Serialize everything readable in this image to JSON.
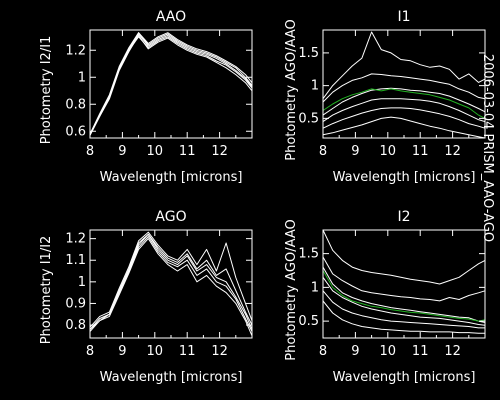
{
  "side_label": "2006-03-04 PRISM_AAO-AGO",
  "colors": {
    "background": "#000000",
    "foreground": "#ffffff",
    "highlight": "#22b022"
  },
  "chart_data": [
    {
      "type": "line",
      "title": "AAO",
      "xlabel": "Wavelength [microns]",
      "ylabel": "Photometry I2/I1",
      "xlim": [
        8,
        13
      ],
      "ylim": [
        0.55,
        1.35
      ],
      "xticks": [
        8,
        9,
        10,
        11,
        12
      ],
      "yticks": [
        0.6,
        0.8,
        1.0,
        1.2
      ],
      "x": [
        8.0,
        8.3,
        8.6,
        8.9,
        9.2,
        9.5,
        9.8,
        10.1,
        10.4,
        10.7,
        11.0,
        11.3,
        11.6,
        11.9,
        12.2,
        12.5,
        12.8,
        13.0
      ],
      "series": [
        {
          "values": [
            0.57,
            0.72,
            0.85,
            1.06,
            1.2,
            1.32,
            1.23,
            1.28,
            1.31,
            1.26,
            1.22,
            1.19,
            1.17,
            1.14,
            1.1,
            1.05,
            0.99,
            0.93
          ]
        },
        {
          "values": [
            0.58,
            0.73,
            0.87,
            1.08,
            1.22,
            1.33,
            1.25,
            1.3,
            1.33,
            1.28,
            1.24,
            1.21,
            1.19,
            1.16,
            1.12,
            1.08,
            1.02,
            0.96
          ]
        },
        {
          "values": [
            0.57,
            0.71,
            0.84,
            1.05,
            1.19,
            1.31,
            1.21,
            1.26,
            1.29,
            1.24,
            1.2,
            1.17,
            1.15,
            1.11,
            1.07,
            1.02,
            0.96,
            0.9
          ]
        },
        {
          "values": [
            0.58,
            0.72,
            0.86,
            1.07,
            1.21,
            1.33,
            1.24,
            1.29,
            1.32,
            1.27,
            1.23,
            1.2,
            1.18,
            1.15,
            1.11,
            1.07,
            1.0,
            0.94
          ]
        },
        {
          "values": [
            0.57,
            0.71,
            0.85,
            1.06,
            1.2,
            1.3,
            1.22,
            1.27,
            1.3,
            1.25,
            1.21,
            1.18,
            1.16,
            1.12,
            1.09,
            1.04,
            0.98,
            0.92
          ]
        }
      ]
    },
    {
      "type": "line",
      "title": "I1",
      "xlabel": "Wavelength [microns]",
      "ylabel": "Photometry AGO/AAO",
      "xlim": [
        8,
        13
      ],
      "ylim": [
        0.2,
        1.85
      ],
      "xticks": [
        8,
        9,
        10,
        11,
        12
      ],
      "yticks": [
        0.5,
        1.0,
        1.5
      ],
      "x": [
        8.0,
        8.3,
        8.6,
        8.9,
        9.2,
        9.5,
        9.8,
        10.1,
        10.4,
        10.7,
        11.0,
        11.3,
        11.6,
        11.9,
        12.2,
        12.5,
        12.8,
        13.0
      ],
      "series": [
        {
          "values": [
            0.8,
            1.0,
            1.15,
            1.3,
            1.42,
            1.82,
            1.55,
            1.5,
            1.4,
            1.38,
            1.32,
            1.28,
            1.3,
            1.25,
            1.1,
            1.18,
            1.05,
            1.1
          ]
        },
        {
          "values": [
            0.75,
            0.9,
            1.0,
            1.08,
            1.12,
            1.18,
            1.17,
            1.15,
            1.14,
            1.12,
            1.1,
            1.08,
            1.05,
            1.02,
            0.95,
            0.9,
            0.82,
            0.8
          ]
        },
        {
          "values": [
            0.55,
            0.65,
            0.75,
            0.82,
            0.88,
            0.93,
            0.95,
            0.96,
            0.95,
            0.93,
            0.92,
            0.9,
            0.88,
            0.84,
            0.78,
            0.72,
            0.65,
            0.6
          ]
        },
        {
          "values": [
            0.45,
            0.55,
            0.62,
            0.68,
            0.73,
            0.78,
            0.8,
            0.8,
            0.8,
            0.79,
            0.78,
            0.76,
            0.73,
            0.68,
            0.62,
            0.55,
            0.48,
            0.45
          ]
        },
        {
          "values": [
            0.35,
            0.42,
            0.48,
            0.53,
            0.58,
            0.62,
            0.65,
            0.66,
            0.66,
            0.65,
            0.63,
            0.6,
            0.57,
            0.53,
            0.48,
            0.42,
            0.38,
            0.35
          ]
        },
        {
          "values": [
            0.25,
            0.28,
            0.32,
            0.36,
            0.4,
            0.45,
            0.5,
            0.52,
            0.5,
            0.46,
            0.42,
            0.38,
            0.35,
            0.31,
            0.28,
            0.25,
            0.22,
            0.2
          ]
        },
        {
          "highlight": true,
          "values": [
            0.62,
            0.72,
            0.8,
            0.86,
            0.9,
            0.95,
            0.92,
            0.95,
            0.92,
            0.9,
            0.88,
            0.86,
            0.82,
            0.78,
            0.72,
            0.66,
            0.55,
            0.5
          ]
        }
      ]
    },
    {
      "type": "line",
      "title": "AGO",
      "xlabel": "Wavelength [microns]",
      "ylabel": "Photometry I1/I2",
      "xlim": [
        8,
        13
      ],
      "ylim": [
        0.74,
        1.24
      ],
      "xticks": [
        8,
        9,
        10,
        11,
        12
      ],
      "yticks": [
        0.8,
        0.9,
        1.0,
        1.1,
        1.2
      ],
      "x": [
        8.0,
        8.3,
        8.6,
        8.9,
        9.2,
        9.5,
        9.8,
        10.1,
        10.4,
        10.7,
        11.0,
        11.3,
        11.6,
        11.9,
        12.2,
        12.5,
        12.8,
        13.0
      ],
      "series": [
        {
          "values": [
            0.78,
            0.83,
            0.85,
            0.95,
            1.05,
            1.17,
            1.22,
            1.15,
            1.1,
            1.08,
            1.12,
            1.05,
            1.08,
            1.02,
            1.0,
            0.93,
            0.85,
            0.78
          ]
        },
        {
          "values": [
            0.79,
            0.84,
            0.86,
            0.97,
            1.07,
            1.19,
            1.23,
            1.17,
            1.12,
            1.1,
            1.15,
            1.08,
            1.15,
            1.05,
            1.18,
            1.02,
            0.9,
            0.82
          ]
        },
        {
          "values": [
            0.77,
            0.82,
            0.84,
            0.94,
            1.04,
            1.15,
            1.2,
            1.13,
            1.08,
            1.05,
            1.08,
            1.0,
            1.03,
            0.98,
            0.95,
            0.9,
            0.82,
            0.75
          ]
        },
        {
          "values": [
            0.78,
            0.83,
            0.85,
            0.96,
            1.06,
            1.18,
            1.22,
            1.16,
            1.11,
            1.09,
            1.13,
            1.06,
            1.1,
            1.03,
            1.06,
            0.96,
            0.86,
            0.8
          ]
        },
        {
          "values": [
            0.78,
            0.82,
            0.85,
            0.95,
            1.05,
            1.16,
            1.21,
            1.14,
            1.09,
            1.07,
            1.1,
            1.03,
            1.06,
            1.0,
            0.98,
            0.92,
            0.83,
            0.77
          ]
        }
      ]
    },
    {
      "type": "line",
      "title": "I2",
      "xlabel": "Wavelength [microns]",
      "ylabel": "Photometry AGO/AAO",
      "xlim": [
        8,
        13
      ],
      "ylim": [
        0.25,
        1.85
      ],
      "xticks": [
        8,
        9,
        10,
        11,
        12
      ],
      "yticks": [
        0.5,
        1.0,
        1.5
      ],
      "x": [
        8.0,
        8.3,
        8.6,
        8.9,
        9.2,
        9.5,
        9.8,
        10.1,
        10.4,
        10.7,
        11.0,
        11.3,
        11.6,
        11.9,
        12.2,
        12.5,
        12.8,
        13.0
      ],
      "series": [
        {
          "values": [
            1.85,
            1.55,
            1.4,
            1.3,
            1.25,
            1.22,
            1.2,
            1.18,
            1.15,
            1.12,
            1.1,
            1.08,
            1.05,
            1.1,
            1.15,
            1.25,
            1.35,
            1.4
          ]
        },
        {
          "values": [
            1.45,
            1.2,
            1.1,
            1.02,
            0.95,
            0.92,
            0.9,
            0.88,
            0.86,
            0.85,
            0.83,
            0.82,
            0.8,
            0.85,
            0.82,
            0.88,
            0.92,
            0.95
          ]
        },
        {
          "values": [
            1.3,
            1.05,
            0.92,
            0.85,
            0.8,
            0.76,
            0.73,
            0.7,
            0.68,
            0.66,
            0.64,
            0.62,
            0.6,
            0.58,
            0.56,
            0.55,
            0.5,
            0.48
          ]
        },
        {
          "values": [
            1.15,
            0.95,
            0.85,
            0.78,
            0.72,
            0.68,
            0.65,
            0.62,
            0.6,
            0.58,
            0.56,
            0.55,
            0.54,
            0.52,
            0.5,
            0.48,
            0.45,
            0.44
          ]
        },
        {
          "values": [
            0.95,
            0.78,
            0.68,
            0.62,
            0.58,
            0.55,
            0.52,
            0.5,
            0.49,
            0.48,
            0.47,
            0.46,
            0.45,
            0.44,
            0.43,
            0.42,
            0.4,
            0.4
          ]
        },
        {
          "values": [
            0.8,
            0.62,
            0.52,
            0.46,
            0.42,
            0.4,
            0.38,
            0.37,
            0.36,
            0.35,
            0.35,
            0.34,
            0.34,
            0.34,
            0.33,
            0.33,
            0.32,
            0.32
          ]
        },
        {
          "highlight": true,
          "values": [
            1.25,
            1.0,
            0.88,
            0.8,
            0.76,
            0.72,
            0.7,
            0.67,
            0.65,
            0.63,
            0.62,
            0.6,
            0.58,
            0.56,
            0.54,
            0.53,
            0.5,
            0.52
          ]
        }
      ]
    }
  ]
}
